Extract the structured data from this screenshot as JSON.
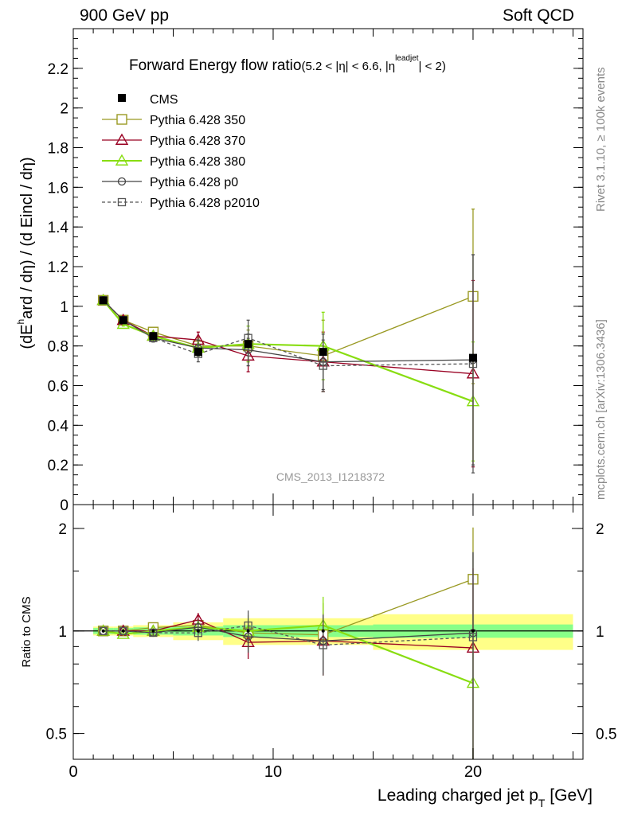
{
  "header": {
    "left": "900 GeV pp",
    "right": "Soft QCD"
  },
  "sidebar": {
    "rivet": "Rivet 3.1.10, ≥ 100k events",
    "mcplots": "mcplots.cern.ch [arXiv:1306.3436]"
  },
  "chart_data": {
    "type": "line",
    "title": "Forward Energy flow ratio(5.2 < |η| < 6.6, |ηleadjet| < 2)",
    "title_main": "Forward Energy flow ratio",
    "title_cond_a": "(5.2 < |",
    "title_cond_eta1": "η",
    "title_cond_b": "| < 6.6, |",
    "title_cond_eta2": "η",
    "title_cond_sup": "leadjet",
    "title_cond_c": "| < 2)",
    "analysis": "CMS_2013_I1218372",
    "ylabel": "(dE^hard / dη) / (d Eincl / dη)",
    "ylabel_a": "(dE",
    "ylabel_sup": "h",
    "ylabel_b": "ard / dη) / (d Eincl / dη)",
    "ratio_ylabel": "Ratio to CMS",
    "xlabel": "Leading charged jet p_T [GeV]",
    "xlabel_a": "Leading charged jet p",
    "xlabel_sub": "T",
    "xlabel_b": " [GeV]",
    "xlim": [
      0,
      25.5
    ],
    "ylim": [
      0,
      2.4
    ],
    "ratio_ylim": [
      0.42,
      2.35
    ],
    "x_ticks": [
      "0",
      "10",
      "20"
    ],
    "y_ticks": [
      "0",
      "0.2",
      "0.4",
      "0.6",
      "0.8",
      "1",
      "1.2",
      "1.4",
      "1.6",
      "1.8",
      "2",
      "2.2"
    ],
    "ratio_ticks": [
      "0.5",
      "1",
      "2"
    ],
    "x": [
      1.5,
      2.5,
      4.0,
      6.25,
      8.75,
      12.5,
      20.0
    ],
    "cms": {
      "name": "CMS",
      "values": [
        1.03,
        0.93,
        0.85,
        0.77,
        0.81,
        0.77,
        0.74
      ],
      "band_inner": [
        {
          "x0": 1.0,
          "x1": 2.0,
          "rel": 0.02
        },
        {
          "x0": 2.0,
          "x1": 3.0,
          "rel": 0.02
        },
        {
          "x0": 3.0,
          "x1": 5.0,
          "rel": 0.025
        },
        {
          "x0": 5.0,
          "x1": 7.5,
          "rel": 0.03
        },
        {
          "x0": 7.5,
          "x1": 10.0,
          "rel": 0.04
        },
        {
          "x0": 10.0,
          "x1": 15.0,
          "rel": 0.04
        },
        {
          "x0": 15.0,
          "x1": 25.0,
          "rel": 0.045
        }
      ],
      "band_outer": [
        {
          "x0": 1.0,
          "x1": 2.0,
          "rel": 0.03
        },
        {
          "x0": 2.0,
          "x1": 3.0,
          "rel": 0.03
        },
        {
          "x0": 3.0,
          "x1": 5.0,
          "rel": 0.04
        },
        {
          "x0": 5.0,
          "x1": 7.5,
          "rel": 0.06
        },
        {
          "x0": 7.5,
          "x1": 10.0,
          "rel": 0.09
        },
        {
          "x0": 10.0,
          "x1": 15.0,
          "rel": 0.09
        },
        {
          "x0": 15.0,
          "x1": 25.0,
          "rel": 0.12
        }
      ]
    },
    "series": [
      {
        "name": "Pythia 6.428 350",
        "color": "#999922",
        "marker": "square",
        "dash": false,
        "values": [
          1.03,
          0.93,
          0.87,
          0.8,
          0.8,
          0.75,
          1.05
        ],
        "err": [
          0.01,
          0.01,
          0.02,
          0.04,
          0.08,
          0.18,
          0.44
        ]
      },
      {
        "name": "Pythia 6.428 370",
        "color": "#990022",
        "marker": "triangle",
        "dash": false,
        "values": [
          1.03,
          0.93,
          0.85,
          0.83,
          0.75,
          0.72,
          0.66
        ],
        "err": [
          0.01,
          0.01,
          0.02,
          0.04,
          0.08,
          0.15,
          0.47
        ]
      },
      {
        "name": "Pythia 6.428 380",
        "color": "#88dd11",
        "marker": "triangle",
        "dash": false,
        "values": [
          1.03,
          0.91,
          0.85,
          0.79,
          0.81,
          0.8,
          0.52
        ],
        "err": [
          0.01,
          0.01,
          0.02,
          0.04,
          0.09,
          0.17,
          0.3
        ]
      },
      {
        "name": "Pythia 6.428 p0",
        "color": "#444444",
        "marker": "circle",
        "dash": false,
        "values": [
          1.03,
          0.93,
          0.84,
          0.79,
          0.78,
          0.72,
          0.73
        ],
        "err": [
          0.01,
          0.01,
          0.02,
          0.04,
          0.08,
          0.14,
          0.53
        ]
      },
      {
        "name": "Pythia 6.428 p2010",
        "color": "#555555",
        "marker": "square-small",
        "dash": true,
        "values": [
          1.03,
          0.93,
          0.84,
          0.76,
          0.84,
          0.7,
          0.71
        ],
        "err": [
          0.01,
          0.01,
          0.02,
          0.04,
          0.09,
          0.13,
          0.55
        ]
      }
    ]
  }
}
